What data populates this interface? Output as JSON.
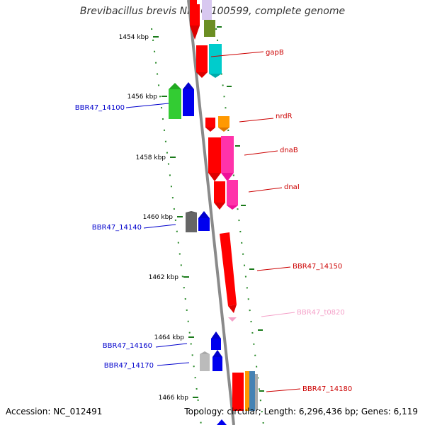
{
  "title": "Brevibacillus brevis NBRC 100599, complete genome",
  "footer": {
    "accession": "Accession: NC_012491",
    "summary": "Topology: circular; Length: 6,296,436 bp; Genes: 6,119"
  },
  "scale_labels": [
    "1454 kbp",
    "1456 kbp",
    "1458 kbp",
    "1460 kbp",
    "1462 kbp",
    "1464 kbp",
    "1466 kbp"
  ],
  "gene_labels": {
    "gapB": "gapB",
    "nrdR": "nrdR",
    "dnaB": "dnaB",
    "dnaI": "dnaI",
    "bbr14100": "BBR47_14100",
    "bbr14140": "BBR47_14140",
    "bbr14150": "BBR47_14150",
    "t0820": "BBR47_t0820",
    "bbr14160": "BBR47_14160",
    "bbr14170": "BBR47_14170",
    "bbr14180": "BBR47_14180"
  },
  "colors": {
    "forward_label": "#cc0000",
    "reverse_label": "#0000cc",
    "rna_label": "#f4a0c8",
    "tick": "#1a7a1a",
    "backbone": "#909090"
  }
}
